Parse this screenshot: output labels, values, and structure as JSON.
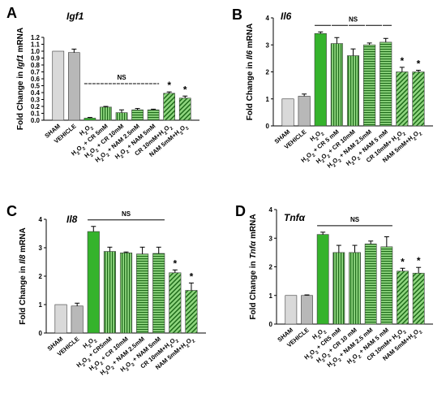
{
  "colors": {
    "sham": "#d9d9d9",
    "vehicle": "#b8b8b8",
    "h2o2": "#35b32c",
    "dark_green": "#1f6b1a",
    "hatch_bg": "#8fd67f",
    "axis": "#000000"
  },
  "chart_data": [
    {
      "type": "bar",
      "panel": "A",
      "gene": "Igf1",
      "ylabel": "Fold Change in Igf1 mRNA",
      "ylim": [
        0,
        1.2
      ],
      "yticks": [
        "0.0",
        "0.1",
        "0.2",
        "0.3",
        "0.4",
        "0.5",
        "0.6",
        "0.7",
        "0.8",
        "0.9",
        "1.0",
        "1.1",
        "1.2"
      ],
      "categories": [
        "SHAM",
        "VEHICLE",
        "H2O2",
        "H2O2 + CR 5mM",
        "H2O2 + CR 10mM",
        "H2O2 + NAM 2.5mM",
        "H2O2 + NAM 5mM",
        "CR 10mM+H2O2",
        "NAM 5mM+H2O2"
      ],
      "values": [
        1.0,
        0.98,
        0.03,
        0.19,
        0.11,
        0.15,
        0.15,
        0.39,
        0.32
      ],
      "errors": [
        0.0,
        0.05,
        0.01,
        0.01,
        0.04,
        0.02,
        0.01,
        0.02,
        0.03
      ],
      "styles": [
        "sham",
        "vehicle",
        "solid",
        "vert",
        "vert",
        "horiz",
        "horiz",
        "diag",
        "diag"
      ],
      "ns_label": "NS",
      "significance": [
        "",
        "",
        "",
        "",
        "",
        "",
        "",
        "*",
        "*"
      ]
    },
    {
      "type": "bar",
      "panel": "B",
      "gene": "Il6",
      "ylabel": "Fold Change in Il6 mRNA",
      "ylim": [
        0,
        4
      ],
      "yticks": [
        "0",
        "1",
        "2",
        "3",
        "4"
      ],
      "categories": [
        "SHAM",
        "VEHICLE",
        "H2O2",
        "H2O2 + CR 5 mM",
        "H2O2 + CR 10mM",
        "H2O2 + NAM 2.5mM",
        "H2O2 + NAM 5 mM",
        "CR 10mM+ H2O2",
        "NAM 5mM+H2O2"
      ],
      "values": [
        1.0,
        1.1,
        3.42,
        3.05,
        2.6,
        3.0,
        3.1,
        2.0,
        2.0
      ],
      "errors": [
        0.0,
        0.08,
        0.06,
        0.22,
        0.25,
        0.07,
        0.14,
        0.17,
        0.06
      ],
      "styles": [
        "sham",
        "vehicle",
        "solid",
        "vert",
        "vert",
        "horiz",
        "horiz",
        "diag",
        "diag"
      ],
      "ns_label": "NS",
      "significance": [
        "",
        "",
        "",
        "",
        "",
        "",
        "",
        "*",
        "*"
      ]
    },
    {
      "type": "bar",
      "panel": "C",
      "gene": "Il8",
      "ylabel": "Fold Change in Il8 mRNA",
      "ylim": [
        0,
        4
      ],
      "yticks": [
        "0",
        "1",
        "2",
        "3",
        "4"
      ],
      "categories": [
        "SHAM",
        "VEHICLE",
        "H2O2",
        "H2O2 + CR5mM",
        "H2O2 + CR 10mM",
        "H2O2 + NAM 2.5mM",
        "H2O2 + NAM 5mM",
        "CR 10mM+H2O2",
        "NAM 5mM+H2O2"
      ],
      "values": [
        1.0,
        0.95,
        3.57,
        2.87,
        2.82,
        2.78,
        2.8,
        2.12,
        1.5
      ],
      "errors": [
        0.0,
        0.1,
        0.18,
        0.15,
        0.03,
        0.24,
        0.22,
        0.1,
        0.26
      ],
      "styles": [
        "sham",
        "vehicle",
        "solid",
        "vert",
        "vert",
        "horiz",
        "horiz",
        "diag",
        "diag"
      ],
      "ns_label": "NS",
      "significance": [
        "",
        "",
        "",
        "",
        "",
        "",
        "",
        "*",
        "*"
      ]
    },
    {
      "type": "bar",
      "panel": "D",
      "gene": "Tnfα",
      "ylabel": "Fold Change in Tnfα mRNA",
      "ylim": [
        0,
        4
      ],
      "yticks": [
        "0",
        "1",
        "2",
        "3",
        "4"
      ],
      "categories": [
        "SHAM",
        "VEHICLE",
        "H2O2",
        "H2O2 + CR5 mM",
        "H2O2 + CR 10 mM",
        "H2O2 + NAM 2.5 mM",
        "H2O2 + NAM 5 mM",
        "CR 10mM+ H2O2",
        "NAM 5mM+H2O2"
      ],
      "values": [
        1.0,
        1.0,
        3.13,
        2.5,
        2.5,
        2.8,
        2.7,
        1.85,
        1.78
      ],
      "errors": [
        0.0,
        0.02,
        0.08,
        0.25,
        0.25,
        0.1,
        0.35,
        0.1,
        0.2
      ],
      "styles": [
        "sham",
        "vehicle",
        "solid",
        "vert",
        "vert",
        "horiz",
        "horiz",
        "diag",
        "diag"
      ],
      "ns_label": "NS",
      "significance": [
        "",
        "",
        "",
        "",
        "",
        "",
        "",
        "*",
        "*"
      ]
    }
  ]
}
